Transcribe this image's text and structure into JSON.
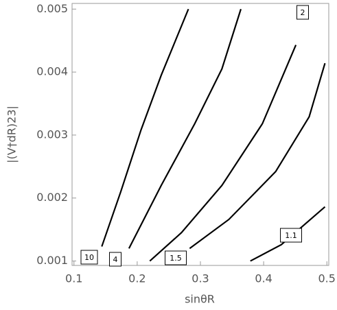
{
  "chart_data": {
    "type": "contour",
    "xlabel": "sinθR",
    "ylabel": "|(V†dR)23|",
    "xlim": [
      0.097,
      0.503
    ],
    "ylim": [
      0.00093,
      0.00509
    ],
    "xticks": [
      0.1,
      0.2,
      0.3,
      0.4,
      0.5
    ],
    "yticks": [
      0.001,
      0.002,
      0.003,
      0.004,
      0.005
    ],
    "color": "#000000",
    "series": [
      {
        "name": "10",
        "x": [
          0.144,
          0.174,
          0.206,
          0.238,
          0.281
        ],
        "y": [
          0.00123,
          0.0021,
          0.00308,
          0.00395,
          0.005
        ]
      },
      {
        "name": "4",
        "x": [
          0.187,
          0.238,
          0.291,
          0.334,
          0.364
        ],
        "y": [
          0.0012,
          0.0022,
          0.00318,
          0.00405,
          0.005
        ]
      },
      {
        "name": "2",
        "x": [
          0.22,
          0.27,
          0.334,
          0.398,
          0.451
        ],
        "y": [
          0.001,
          0.00145,
          0.0022,
          0.00318,
          0.00443
        ]
      },
      {
        "name": "1.5",
        "x": [
          0.283,
          0.345,
          0.419,
          0.472,
          0.497
        ],
        "y": [
          0.0012,
          0.00166,
          0.00242,
          0.00329,
          0.00414
        ]
      },
      {
        "name": "1.1",
        "x": [
          0.379,
          0.428,
          0.497
        ],
        "y": [
          0.001,
          0.00126,
          0.00186
        ]
      }
    ]
  }
}
